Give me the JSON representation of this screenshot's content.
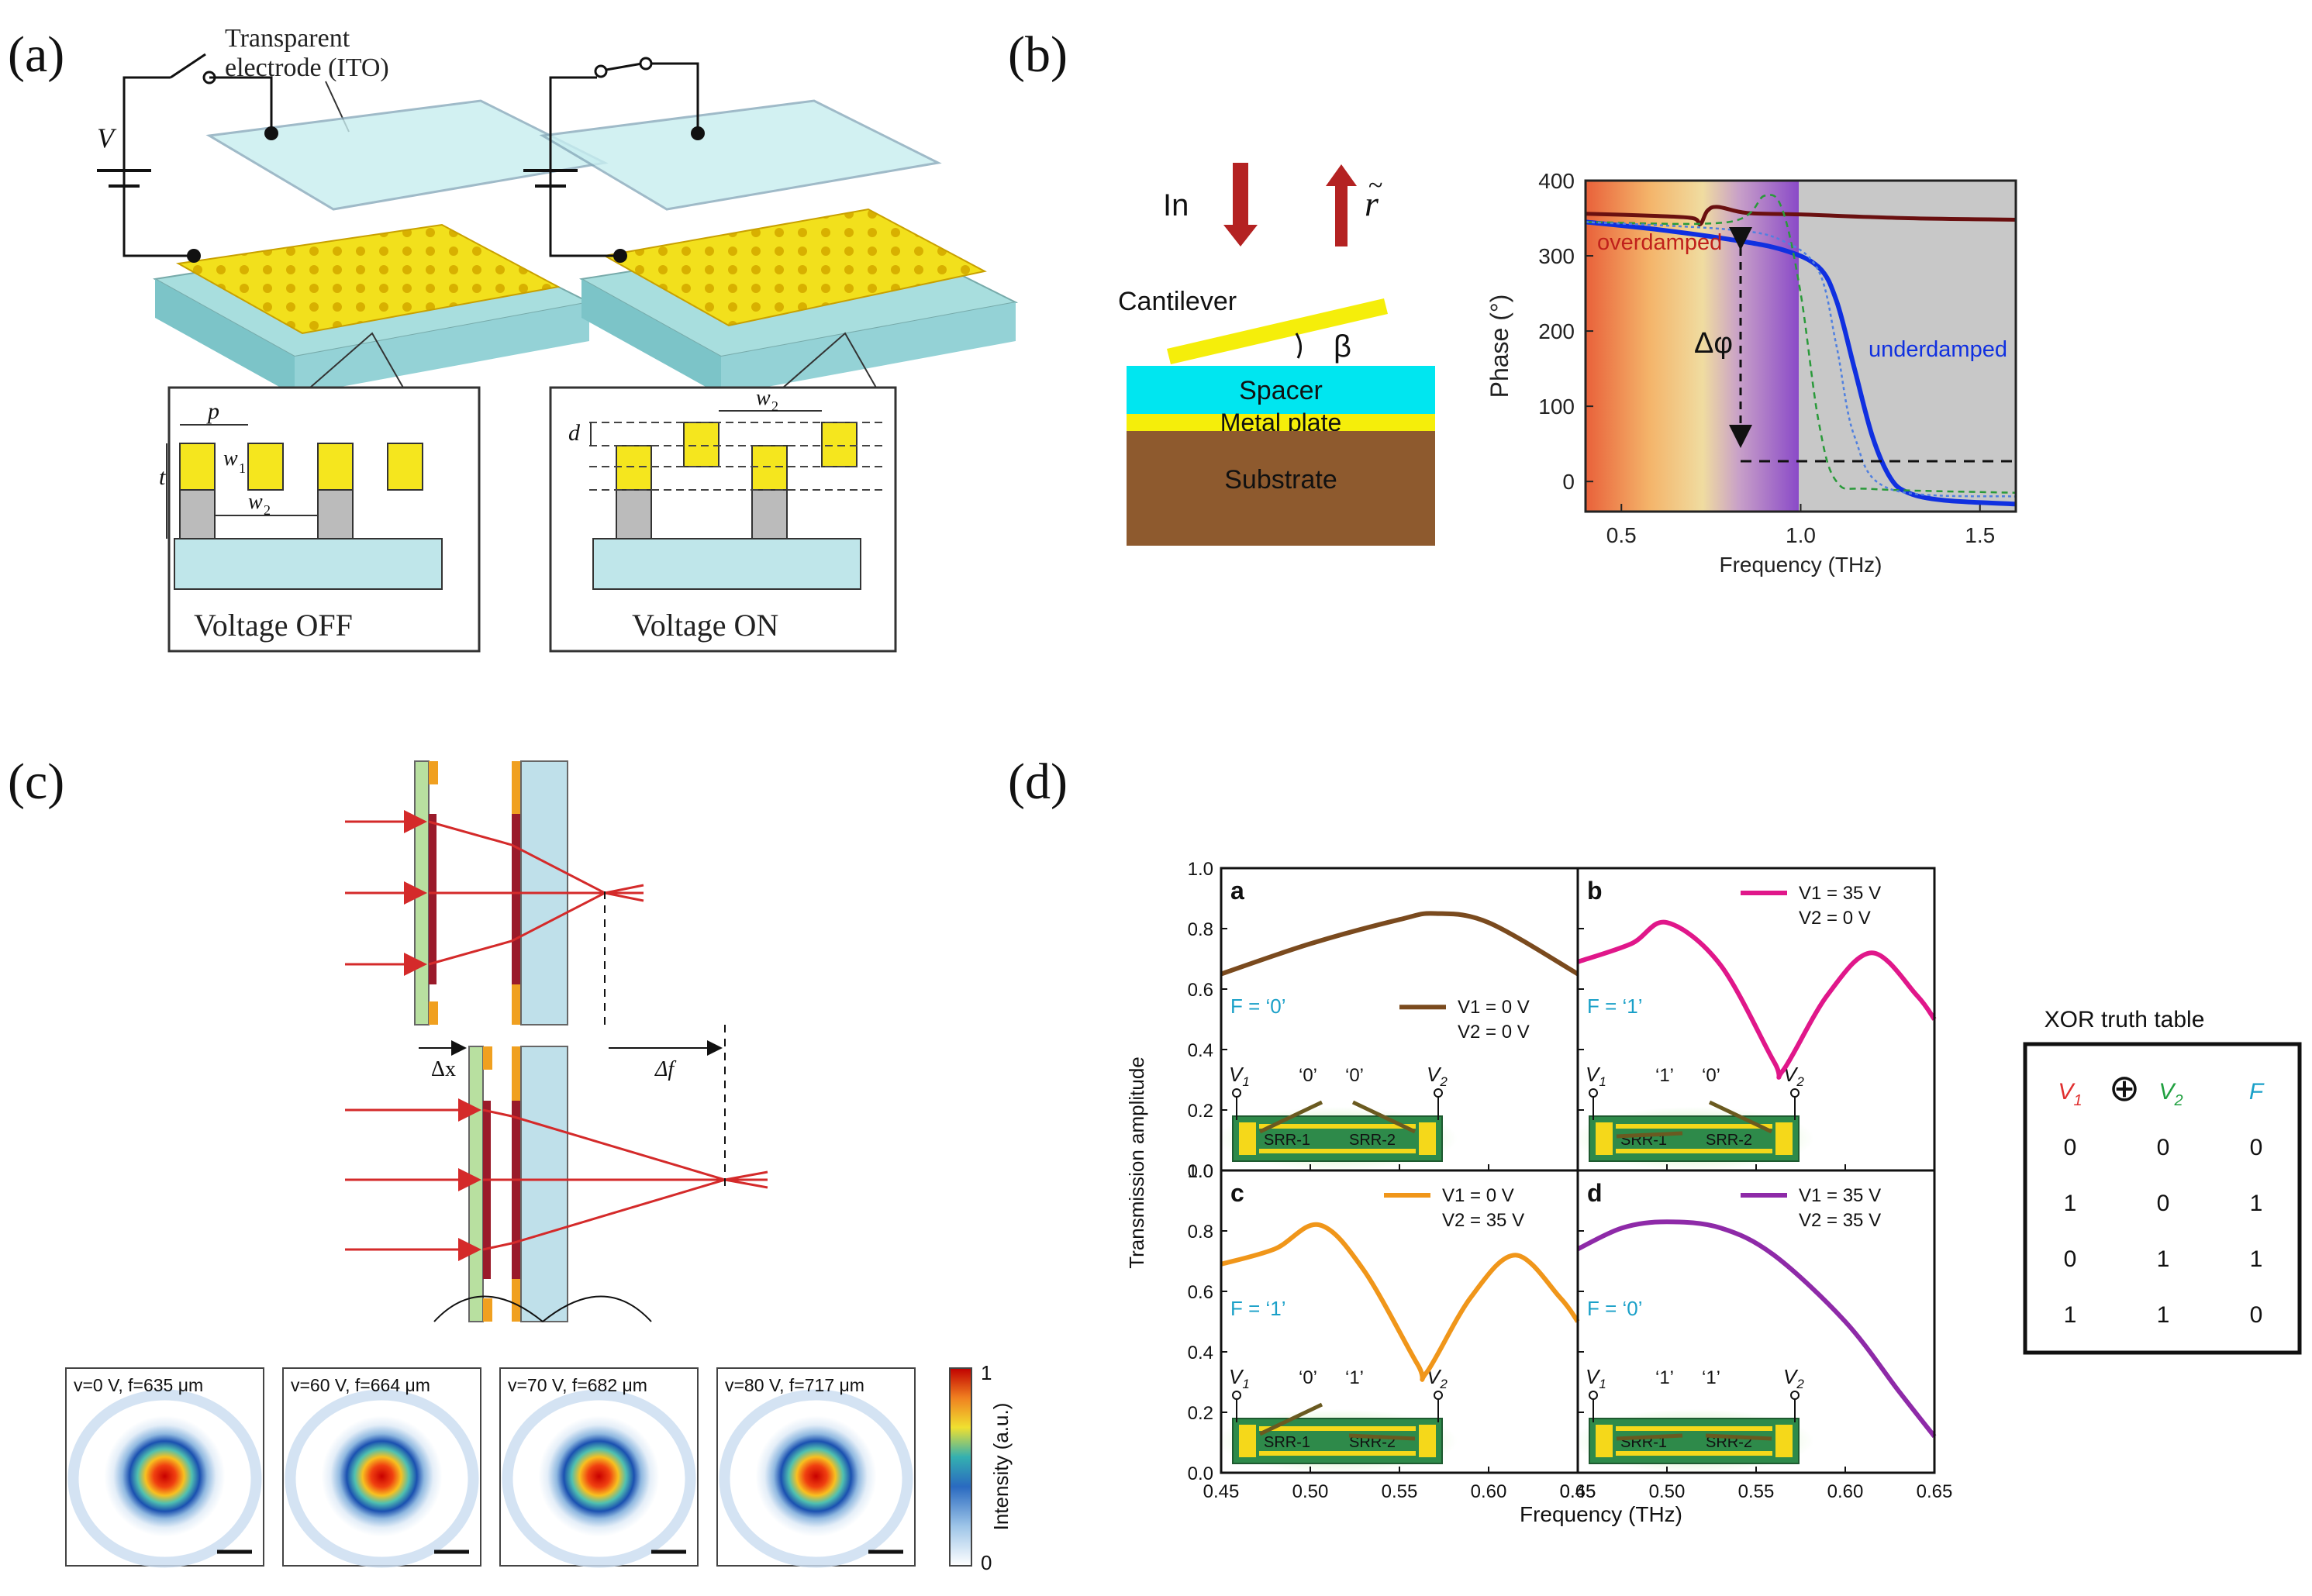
{
  "figure": {
    "panels": [
      {
        "label": "(a)"
      },
      {
        "label": "(b)"
      },
      {
        "label": "(c)"
      },
      {
        "label": "(d)"
      }
    ]
  },
  "panel_a": {
    "ito_label_1": "Transparent",
    "ito_label_2": "electrode (ITO)",
    "v_label": "V",
    "p": "p",
    "t": "t",
    "w1": "w",
    "w2": "w",
    "d": "d",
    "off_label": "Voltage OFF",
    "on_label": "Voltage ON"
  },
  "panel_b": {
    "in_label": "In",
    "r_label": "r",
    "tilde": "~",
    "cantilever": "Cantilever",
    "beta": "β",
    "spacer": "Spacer",
    "metal_plate": "Metal plate",
    "substrate": "Substrate",
    "overdamped": "overdamped",
    "underdamped": "underdamped",
    "delta_phi": "Δφ",
    "colors": {
      "overdamped": "#c0201b",
      "underdamped": "#1030e0",
      "shade": "#c8c8c8"
    }
  },
  "panel_c": {
    "dx_label": "Δx",
    "df_label": "Δf",
    "colorbar_label": "Intensity (a.u.)",
    "colorbar_max": "1",
    "colorbar_min": "0",
    "focus_images": [
      {
        "label": "v=0 V, f=635 μm"
      },
      {
        "label": "v=60 V, f=664 μm"
      },
      {
        "label": "v=70 V, f=682 μm"
      },
      {
        "label": "v=80 V, f=717 μm"
      }
    ]
  },
  "panel_d": {
    "ylabel": "Transmission amplitude",
    "xlabel": "Frequency (THz)",
    "xticks": [
      "0.45",
      "0.50",
      "0.55",
      "0.60",
      "0.65"
    ],
    "yticks": [
      "0.0",
      "0.2",
      "0.4",
      "0.6",
      "0.8",
      "1.0"
    ],
    "srr1": "SRR-1",
    "srr2": "SRR-2",
    "subplots": [
      {
        "id": "a",
        "color": "#7a4a1e",
        "v1": "V1 = 0 V",
        "v2": "V2 = 0 V",
        "f": "F = ‘0’",
        "bits": [
          "‘0’",
          "‘0’"
        ]
      },
      {
        "id": "b",
        "color": "#e0178a",
        "v1": "V1 = 35 V",
        "v2": "V2 = 0 V",
        "f": "F = ‘1’",
        "bits": [
          "‘1’",
          "‘0’"
        ]
      },
      {
        "id": "c",
        "color": "#f0961a",
        "v1": "V1 = 0 V",
        "v2": "V2 = 35 V",
        "f": "F = ‘1’",
        "bits": [
          "‘0’",
          "‘1’"
        ]
      },
      {
        "id": "d",
        "color": "#8e2aa8",
        "v1": "V1 = 35 V",
        "v2": "V2 = 35 V",
        "f": "F = ‘0’",
        "bits": [
          "‘1’",
          "‘1’"
        ]
      }
    ],
    "truth_table": {
      "title": "XOR truth table",
      "headers": [
        "V1",
        "⊕",
        "V2",
        "F"
      ],
      "rows": [
        [
          "0",
          "0",
          "0"
        ],
        [
          "1",
          "0",
          "1"
        ],
        [
          "0",
          "1",
          "1"
        ],
        [
          "1",
          "1",
          "0"
        ]
      ]
    }
  },
  "chart_data": [
    {
      "type": "line",
      "panel": "(b)",
      "xlabel": "Frequency (THz)",
      "ylabel": "Phase (°)",
      "xlim": [
        0.4,
        1.6
      ],
      "ylim": [
        -40,
        400
      ],
      "xticks": [
        0.5,
        1.0,
        1.5
      ],
      "yticks": [
        0,
        100,
        200,
        300,
        400
      ],
      "series": [
        {
          "name": "overdamped",
          "style": "solid",
          "x": [
            0.4,
            0.6,
            0.7,
            0.72,
            0.74,
            0.77,
            0.85,
            1.0,
            1.3,
            1.6
          ],
          "y": [
            356,
            353,
            350,
            342,
            360,
            365,
            357,
            355,
            350,
            348
          ]
        },
        {
          "name": "underdamped",
          "style": "solid",
          "x": [
            0.4,
            0.6,
            0.8,
            0.95,
            1.05,
            1.1,
            1.15,
            1.2,
            1.25,
            1.3,
            1.4,
            1.6
          ],
          "y": [
            345,
            335,
            322,
            308,
            285,
            240,
            150,
            60,
            5,
            -15,
            -25,
            -30
          ]
        },
        {
          "name": "dashed-green",
          "style": "dashed",
          "x": [
            0.4,
            0.8,
            0.9,
            0.95,
            1.0,
            1.05,
            1.1,
            1.2,
            1.6
          ],
          "y": [
            345,
            345,
            380,
            360,
            250,
            80,
            0,
            -10,
            -15
          ]
        },
        {
          "name": "dashed-blue",
          "style": "dotted",
          "x": [
            0.4,
            0.8,
            0.95,
            1.05,
            1.1,
            1.15,
            1.25,
            1.6
          ],
          "y": [
            345,
            335,
            320,
            280,
            180,
            60,
            -10,
            -20
          ]
        }
      ],
      "annotations": [
        "overdamped",
        "underdamped",
        "Δφ"
      ]
    },
    {
      "type": "line",
      "panel": "(d)",
      "xlabel": "Frequency (THz)",
      "ylabel": "Transmission amplitude",
      "xlim": [
        0.45,
        0.65
      ],
      "ylim": [
        0,
        1.0
      ],
      "subplots": [
        {
          "id": "a",
          "x": [
            0.45,
            0.5,
            0.55,
            0.57,
            0.6,
            0.65
          ],
          "y": [
            0.65,
            0.75,
            0.83,
            0.85,
            0.82,
            0.65
          ]
        },
        {
          "id": "b",
          "x": [
            0.45,
            0.48,
            0.5,
            0.53,
            0.56,
            0.565,
            0.59,
            0.615,
            0.64,
            0.65
          ],
          "y": [
            0.69,
            0.75,
            0.82,
            0.68,
            0.36,
            0.33,
            0.58,
            0.72,
            0.58,
            0.5
          ]
        },
        {
          "id": "c",
          "x": [
            0.45,
            0.48,
            0.505,
            0.53,
            0.56,
            0.565,
            0.59,
            0.615,
            0.64,
            0.65
          ],
          "y": [
            0.69,
            0.74,
            0.82,
            0.67,
            0.36,
            0.33,
            0.58,
            0.72,
            0.58,
            0.5
          ]
        },
        {
          "id": "d",
          "x": [
            0.45,
            0.475,
            0.5,
            0.53,
            0.56,
            0.6,
            0.63,
            0.65
          ],
          "y": [
            0.74,
            0.81,
            0.83,
            0.81,
            0.72,
            0.5,
            0.27,
            0.12
          ]
        }
      ]
    }
  ]
}
